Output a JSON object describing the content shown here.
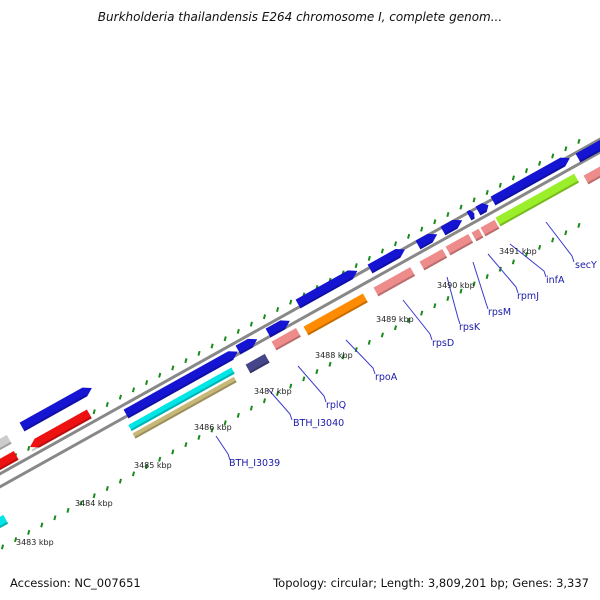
{
  "header": {
    "title": "Burkholderia thailandensis E264 chromosome I, complete genom..."
  },
  "footer": {
    "accession": "Accession: NC_007651",
    "topology": "Topology: circular; Length: 3,809,201 bp; Genes: 3,337"
  },
  "scale": {
    "unit_labels": [
      "3483 kbp",
      "3484 kbp",
      "3485 kbp",
      "3486 kbp",
      "3487 kbp",
      "3488 kbp",
      "3489 kbp",
      "3490 kbp",
      "3491 kbp"
    ]
  },
  "genes": {
    "labels": [
      "BTH_I3039",
      "BTH_I3040",
      "rplQ",
      "rpoA",
      "rpsD",
      "rpsK",
      "rpsM",
      "rpmJ",
      "infA",
      "secY"
    ]
  },
  "colors": {
    "forward_cds": "#1414d2",
    "reverse_red": "#ee1111",
    "pink": "#ee8c8c",
    "orange": "#ff8c00",
    "lime": "#9aee2a",
    "cyan": "#00e5e5",
    "tan": "#c8b878",
    "navy": "#45458a",
    "backbone": "#888888",
    "tick": "#1a8a1a",
    "label_line": "#3a3acc"
  }
}
